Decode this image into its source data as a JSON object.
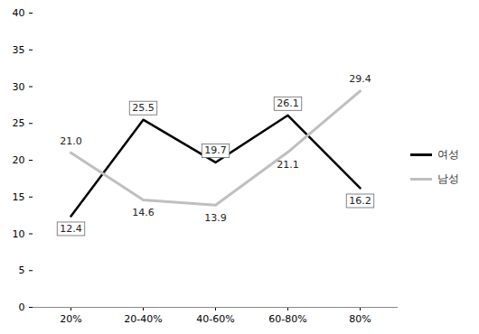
{
  "chart_data": {
    "type": "line",
    "categories": [
      "20%",
      "20-40%",
      "40-60%",
      "60-80%",
      "80%"
    ],
    "series": [
      {
        "name": "여성",
        "color": "#000000",
        "values": [
          12.4,
          25.5,
          19.7,
          26.1,
          16.2
        ],
        "value_labels": [
          "12.4",
          "25.5",
          "19.7",
          "26.1",
          "16.2"
        ]
      },
      {
        "name": "남성",
        "color": "#bfbfbf",
        "values": [
          21.0,
          14.6,
          13.9,
          21.1,
          29.4
        ],
        "value_labels": [
          "21.0",
          "14.6",
          "13.9",
          "21.1",
          "29.4"
        ]
      }
    ],
    "ylim": [
      0,
      40
    ],
    "yticks": [
      0,
      5,
      10,
      15,
      20,
      25,
      30,
      35,
      40
    ],
    "grid": false,
    "legend": "right",
    "data_labels": true
  }
}
